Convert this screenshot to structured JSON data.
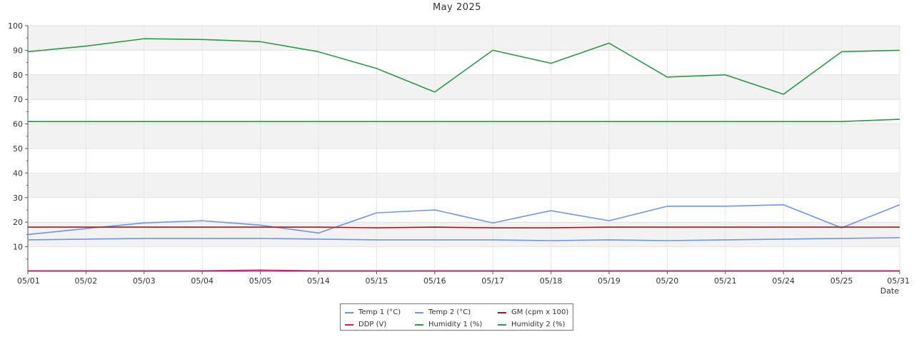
{
  "chart_data": {
    "type": "line",
    "title": "May 2025",
    "xlabel": "Date",
    "ylabel": "",
    "ylim": [
      0,
      100
    ],
    "yticks": [
      10,
      20,
      30,
      40,
      50,
      60,
      70,
      80,
      90,
      100
    ],
    "grid": true,
    "legend_position": "bottom",
    "categories": [
      "05/01",
      "05/02",
      "05/03",
      "05/04",
      "05/05",
      "05/14",
      "05/15",
      "05/16",
      "05/17",
      "05/18",
      "05/19",
      "05/20",
      "05/21",
      "05/24",
      "05/25",
      "05/31"
    ],
    "series": [
      {
        "name": "Temp 1 (°C)",
        "color": "#6f95e6",
        "values": [
          12.8,
          13.1,
          13.4,
          13.4,
          13.4,
          13.1,
          12.8,
          12.8,
          12.8,
          12.5,
          12.8,
          12.5,
          12.8,
          13.1,
          13.4,
          13.7
        ]
      },
      {
        "name": "Temp 2 (°C)",
        "color": "#6f95e6",
        "values": [
          15.0,
          17.4,
          19.7,
          20.6,
          18.8,
          15.6,
          23.8,
          25.0,
          19.7,
          24.7,
          20.6,
          26.5,
          26.5,
          27.1,
          17.7,
          27.1
        ]
      },
      {
        "name": "GM (cpm x 100)",
        "color": "#a01c1c",
        "values": [
          18.0,
          18.0,
          18.0,
          18.0,
          18.0,
          18.0,
          17.7,
          18.0,
          17.7,
          17.7,
          18.0,
          18.0,
          18.0,
          18.0,
          18.0,
          18.0
        ]
      },
      {
        "name": "DDP (V)",
        "color": "#e0107a",
        "values": [
          0.2,
          0.2,
          0.2,
          0.2,
          0.5,
          0.2,
          0.2,
          0.2,
          0.2,
          0.2,
          0.2,
          0.2,
          0.2,
          0.2,
          0.2,
          0.2
        ]
      },
      {
        "name": "Humidity 1 (%)",
        "color": "#2a9a45",
        "values": [
          89.4,
          91.7,
          94.7,
          94.4,
          93.5,
          89.4,
          82.6,
          73.0,
          90.0,
          84.7,
          92.9,
          79.1,
          80.0,
          72.1,
          89.4,
          90.0
        ]
      },
      {
        "name": "Humidity 2 (%)",
        "color": "#2a9a45",
        "values": [
          61.0,
          61.0,
          61.0,
          61.0,
          61.0,
          61.0,
          61.0,
          61.0,
          61.0,
          61.0,
          61.0,
          61.0,
          61.0,
          61.0,
          61.0,
          61.9
        ]
      }
    ]
  }
}
